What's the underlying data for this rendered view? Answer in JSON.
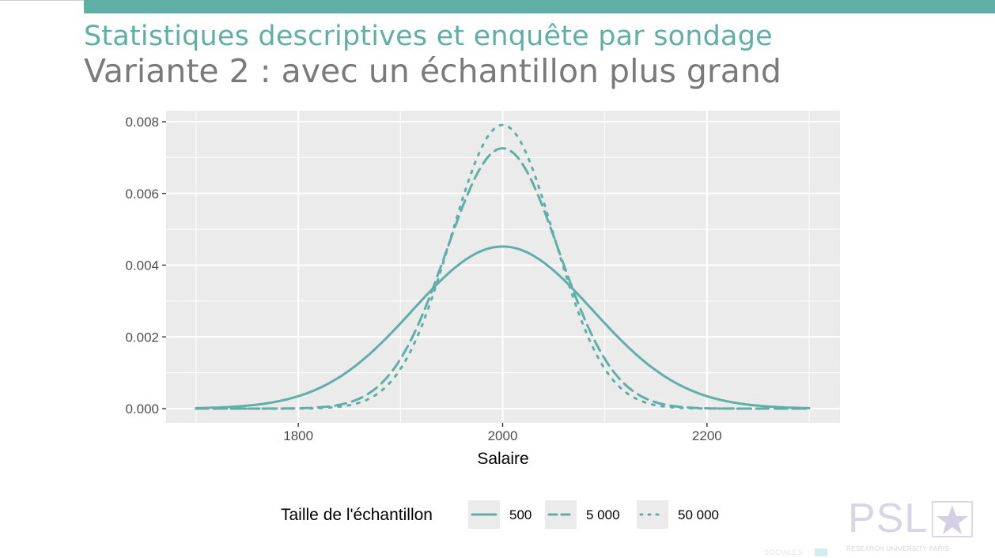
{
  "slide": {
    "title": "Statistiques descriptives et enquête par sondage",
    "subtitle": "Variante 2 : avec un échantillon plus grand"
  },
  "colors": {
    "accent": "#5fafa6",
    "subtitle": "#7a7a7a",
    "panel": "#ebebeb",
    "grid": "#ffffff"
  },
  "chart_data": {
    "type": "line",
    "title": "",
    "xlabel": "Salaire",
    "ylabel": "",
    "xlim": [
      1700,
      2300
    ],
    "ylim": [
      0,
      0.008
    ],
    "x_ticks": [
      1800,
      2000,
      2200
    ],
    "x_tick_labels": [
      "1800",
      "2000",
      "2200"
    ],
    "y_ticks": [
      0,
      0.002,
      0.004,
      0.006,
      0.008
    ],
    "y_tick_labels": [
      "0.000",
      "0.002",
      "0.004",
      "0.006",
      "0.008"
    ],
    "grid": true,
    "line_color": "#5fafa6",
    "legend": {
      "title": "Taille de l'échantillon",
      "position": "bottom"
    },
    "series": [
      {
        "name": "500",
        "linetype": "solid",
        "mean": 2000,
        "peak": 0.00452,
        "x": [
          1700,
          1750,
          1800,
          1850,
          1900,
          1950,
          2000,
          2050,
          2100,
          2150,
          2200,
          2250,
          2300
        ],
        "y": [
          2e-05,
          8e-05,
          0.00032,
          0.00094,
          0.00212,
          0.00363,
          0.00452,
          0.00363,
          0.00212,
          0.00094,
          0.00032,
          8e-05,
          2e-05
        ]
      },
      {
        "name": "5 000",
        "linetype": "dashed",
        "mean": 2000,
        "peak": 0.00726,
        "x": [
          1700,
          1800,
          1850,
          1900,
          1925,
          1950,
          1975,
          2000,
          2025,
          2050,
          2075,
          2100,
          2150,
          2200,
          2300
        ],
        "y": [
          0,
          1e-05,
          0.00014,
          0.00093,
          0.00206,
          0.00377,
          0.00599,
          0.00726,
          0.00599,
          0.00377,
          0.00206,
          0.00093,
          0.00014,
          1e-05,
          0
        ]
      },
      {
        "name": "50 000",
        "linetype": "dotted",
        "mean": 2000,
        "peak": 0.00791,
        "x": [
          1700,
          1800,
          1850,
          1900,
          1925,
          1950,
          1975,
          2000,
          2025,
          2050,
          2075,
          2100,
          2150,
          2200,
          2300
        ],
        "y": [
          0,
          0,
          7e-05,
          0.0007,
          0.00184,
          0.00371,
          0.00634,
          0.00791,
          0.00634,
          0.00371,
          0.00184,
          0.0007,
          7e-05,
          0,
          0
        ]
      }
    ]
  },
  "logo": {
    "letters": "PSL",
    "tagline": "RESEARCH UNIVERSITY PARIS",
    "icon": "star-icon"
  },
  "partner_text": "SOCIALES"
}
